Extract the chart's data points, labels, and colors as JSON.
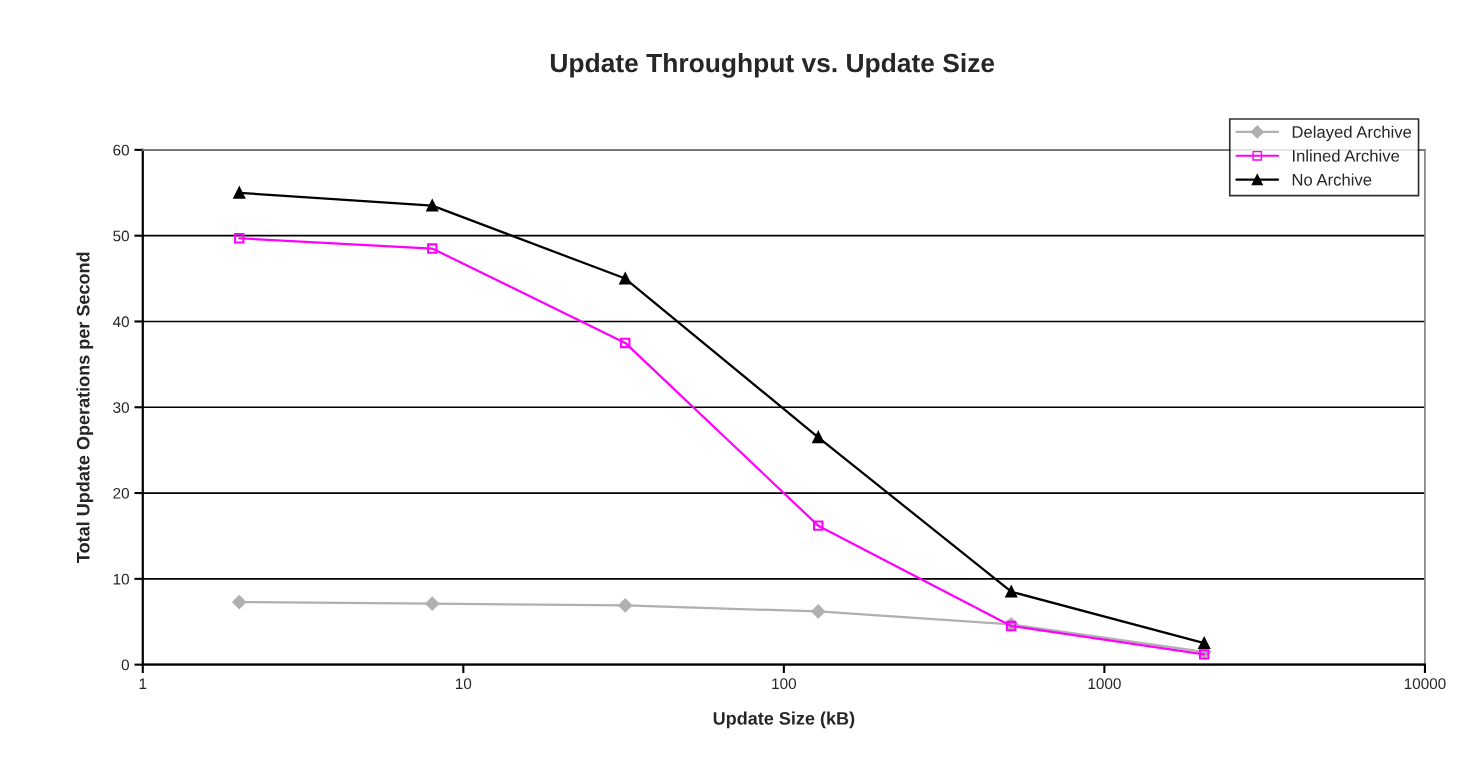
{
  "chart_data": {
    "type": "line",
    "title": "Update Throughput vs. Update Size",
    "xlabel": "Update Size (kB)",
    "ylabel": "Total Update Operations per Second",
    "x": [
      2,
      8,
      32,
      128,
      512,
      2048
    ],
    "series": [
      {
        "name": "Delayed Archive",
        "color": "#b0b0b0",
        "marker": "diamond",
        "values": [
          7.3,
          7.1,
          6.9,
          6.2,
          4.7,
          1.5
        ]
      },
      {
        "name": "Inlined Archive",
        "color": "#ff00ff",
        "marker": "square",
        "values": [
          49.7,
          48.5,
          37.5,
          16.2,
          4.5,
          1.2
        ]
      },
      {
        "name": "No Archive",
        "color": "#000000",
        "marker": "triangle",
        "values": [
          55,
          53.5,
          45,
          26.5,
          8.5,
          2.5
        ]
      }
    ],
    "log": "x",
    "xlim": [
      1,
      10000
    ],
    "xticks": [
      1,
      10,
      100,
      1000,
      10000
    ],
    "ylim": [
      0,
      60
    ],
    "yticks": [
      0,
      10,
      20,
      30,
      40,
      50,
      60
    ],
    "grid": "y",
    "legend": "top right",
    "line_style": "solid"
  }
}
